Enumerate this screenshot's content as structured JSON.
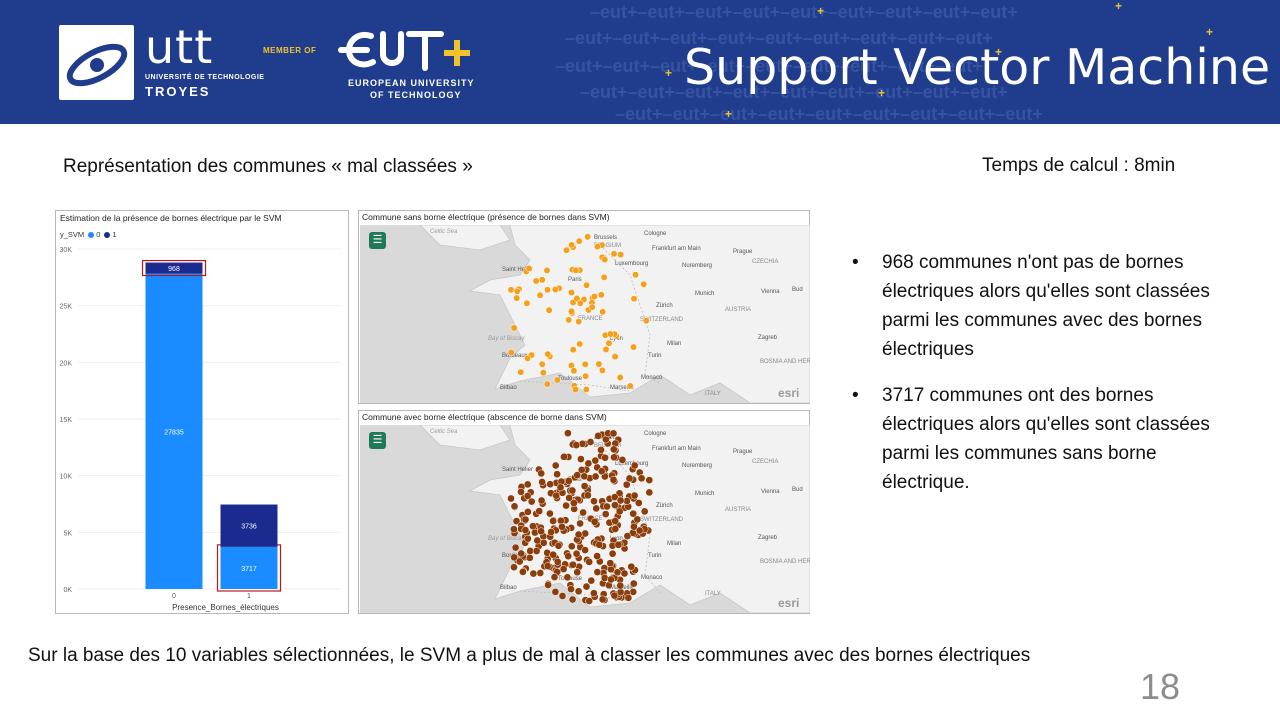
{
  "header": {
    "title": "Support Vector Machine",
    "utt_logo": "utt",
    "utt_sub": "UNIVERSITÉ DE TECHNOLOGIE",
    "utt_city": "TROYES",
    "member_of": "MEMBER OF",
    "eut_line1": "EUROPEAN UNIVERSITY",
    "eut_line2": "OF TECHNOLOGY",
    "colors": {
      "band": "#1f3d8c",
      "accent": "#f2c32e"
    }
  },
  "subtitle": "Représentation des communes « mal classées »",
  "compute_time": "Temps de calcul : 8min",
  "bar_chart": {
    "title": "Estimation de la présence de bornes électrique par le SVM",
    "legend_title": "y_SVM",
    "legend": [
      {
        "label": "0",
        "color": "#1a8cff"
      },
      {
        "label": "1",
        "color": "#1b2a8f"
      }
    ]
  },
  "chart_data": {
    "type": "bar",
    "stacked": true,
    "categories": [
      "0",
      "1"
    ],
    "series": [
      {
        "name": "0",
        "values": [
          27835,
          3717
        ],
        "color": "#1a8cff"
      },
      {
        "name": "1",
        "values": [
          968,
          3736
        ],
        "color": "#1b2a8f"
      }
    ],
    "xlabel": "Presence_Bornes_électriques",
    "ylabel": "",
    "ylim": [
      0,
      30000
    ],
    "yticks": [
      "0K",
      "5K",
      "10K",
      "15K",
      "20K",
      "25K",
      "30K"
    ],
    "highlighted": [
      "968",
      "3717"
    ]
  },
  "maps": [
    {
      "title": "Commune sans borne électrique (présence de bornes dans SVM)",
      "dot_color": "#f5a01a",
      "attribution": "esri"
    },
    {
      "title": "Commune avec borne électrique (abscence de borne dans SVM)",
      "dot_color": "#8b3d0c",
      "attribution": "esri"
    }
  ],
  "map_labels": {
    "celtic_sea": "Celtic Sea",
    "brussels": "Brussels",
    "belgium": "BELGIUM",
    "cologne": "Cologne",
    "frankfurt": "Frankfurt am Main",
    "prague": "Prague",
    "czechia": "CZECHIA",
    "luxembourg": "Luxembourg",
    "nuremberg": "Nuremberg",
    "paris": "Paris",
    "saint_helier": "Saint Helier",
    "munich": "Munich",
    "vienna": "Vienna",
    "france": "FRANCE",
    "zurich": "Zürich",
    "switzerland": "SWITZERLAND",
    "austria": "AUSTRIA",
    "bay_of_biscay": "Bay of Biscay",
    "lyon": "Lyon",
    "milan": "Milan",
    "zagreb": "Zagreb",
    "bordeaux": "Bordeaux",
    "turin": "Turin",
    "toulouse": "Toulouse",
    "monaco": "Monaco",
    "marseille": "Marseille",
    "bilbao": "Bilbao",
    "italy": "ITALY",
    "bosnia": "BOSNIA AND HERZ.",
    "bud": "Bud"
  },
  "bullets": [
    "968 communes n'ont pas de bornes électriques alors qu'elles sont classées parmi les communes avec des bornes électriques",
    "3717 communes ont des bornes électriques alors qu'elles sont classées parmi les communes sans borne électrique."
  ],
  "conclusion": "Sur la base des 10 variables sélectionnées, le SVM a plus de mal à classer les communes avec des bornes électriques",
  "page_number": "18"
}
